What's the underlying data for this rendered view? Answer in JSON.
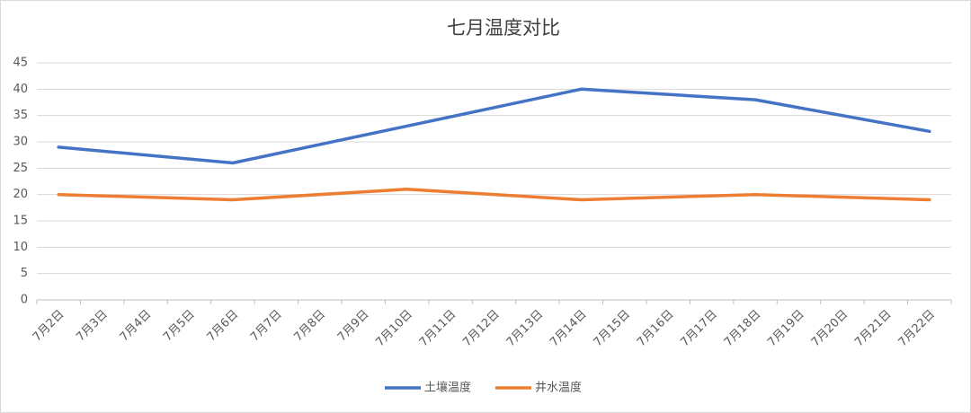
{
  "chart_data": {
    "type": "line",
    "title": "七月温度对比",
    "categories": [
      "7月2日",
      "7月3日",
      "7月4日",
      "7月5日",
      "7月6日",
      "7月7日",
      "7月8日",
      "7月9日",
      "7月10日",
      "7月11日",
      "7月12日",
      "7月13日",
      "7月14日",
      "7月15日",
      "7月16日",
      "7月17日",
      "7月18日",
      "7月19日",
      "7月20日",
      "7月21日",
      "7月22日"
    ],
    "series": [
      {
        "name": "土壤温度",
        "color": "#4472c4",
        "values": [
          29,
          null,
          null,
          null,
          26,
          null,
          null,
          null,
          33,
          null,
          null,
          null,
          40,
          null,
          null,
          null,
          38,
          null,
          null,
          null,
          32
        ]
      },
      {
        "name": "井水温度",
        "color": "#ed7d31",
        "values": [
          20,
          null,
          null,
          null,
          19,
          null,
          null,
          null,
          21,
          null,
          null,
          null,
          19,
          null,
          null,
          null,
          20,
          null,
          null,
          null,
          19
        ]
      }
    ],
    "ylim": [
      0,
      45
    ],
    "yticks": [
      0,
      5,
      10,
      15,
      20,
      25,
      30,
      35,
      40,
      45
    ],
    "grid": true,
    "legend": "bottom"
  }
}
